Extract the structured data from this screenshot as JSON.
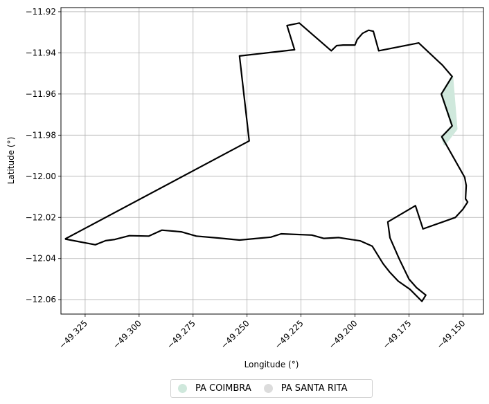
{
  "chart_data": {
    "type": "map",
    "xlabel": "Longitude (°)",
    "ylabel": "Latitude (°)",
    "xlim": [
      -49.3362,
      -49.1405
    ],
    "ylim": [
      -12.067,
      -11.918
    ],
    "x_ticks": [
      -49.325,
      -49.3,
      -49.275,
      -49.25,
      -49.225,
      -49.2,
      -49.175,
      -49.15
    ],
    "x_tick_labels": [
      "−49.325",
      "−49.300",
      "−49.275",
      "−49.250",
      "−49.225",
      "−49.200",
      "−49.175",
      "−49.150"
    ],
    "y_ticks": [
      -11.92,
      -11.94,
      -11.96,
      -11.98,
      -12.0,
      -12.02,
      -12.04,
      -12.06
    ],
    "y_tick_labels": [
      "−11.92",
      "−11.94",
      "−11.96",
      "−11.98",
      "−12.00",
      "−12.02",
      "−12.04",
      "−12.06"
    ],
    "grid": true,
    "legend_position": "bottom-center",
    "boundary": {
      "stroke": "#000000",
      "points": [
        [
          -49.3343,
          -12.0305
        ],
        [
          -49.3203,
          -12.0333
        ],
        [
          -49.3155,
          -12.0313
        ],
        [
          -49.3112,
          -12.0307
        ],
        [
          -49.3045,
          -12.0289
        ],
        [
          -49.2955,
          -12.0291
        ],
        [
          -49.2895,
          -12.0262
        ],
        [
          -49.2805,
          -12.027
        ],
        [
          -49.2735,
          -12.0291
        ],
        [
          -49.2635,
          -12.03
        ],
        [
          -49.2535,
          -12.031
        ],
        [
          -49.239,
          -12.0296
        ],
        [
          -49.2342,
          -12.028
        ],
        [
          -49.22,
          -12.0286
        ],
        [
          -49.2145,
          -12.0302
        ],
        [
          -49.2075,
          -12.0298
        ],
        [
          -49.1975,
          -12.0314
        ],
        [
          -49.192,
          -12.034
        ],
        [
          -49.187,
          -12.0425
        ],
        [
          -49.184,
          -12.0465
        ],
        [
          -49.18,
          -12.051
        ],
        [
          -49.1745,
          -12.055
        ],
        [
          -49.169,
          -12.0608
        ],
        [
          -49.1672,
          -12.0578
        ],
        [
          -49.1715,
          -12.0542
        ],
        [
          -49.175,
          -12.05
        ],
        [
          -49.1795,
          -12.0402
        ],
        [
          -49.1838,
          -12.0299
        ],
        [
          -49.1848,
          -12.0222
        ],
        [
          -49.172,
          -12.0143
        ],
        [
          -49.1685,
          -12.0256
        ],
        [
          -49.1535,
          -12.02
        ],
        [
          -49.15,
          -12.016
        ],
        [
          -49.1478,
          -12.0125
        ],
        [
          -49.1488,
          -12.011
        ],
        [
          -49.1485,
          -12.0045
        ],
        [
          -49.1492,
          -12.0005
        ],
        [
          -49.1598,
          -11.9808
        ],
        [
          -49.155,
          -11.9755
        ],
        [
          -49.16,
          -11.96
        ],
        [
          -49.155,
          -11.9515
        ],
        [
          -49.1595,
          -11.946
        ],
        [
          -49.1705,
          -11.9352
        ],
        [
          -49.189,
          -11.939
        ],
        [
          -49.1915,
          -11.9295
        ],
        [
          -49.1937,
          -11.929
        ],
        [
          -49.1965,
          -11.9305
        ],
        [
          -49.199,
          -11.9335
        ],
        [
          -49.2,
          -11.9362
        ],
        [
          -49.2055,
          -11.9362
        ],
        [
          -49.2085,
          -11.9365
        ],
        [
          -49.211,
          -11.939
        ],
        [
          -49.2258,
          -11.9255
        ],
        [
          -49.2315,
          -11.9267
        ],
        [
          -49.228,
          -11.9385
        ],
        [
          -49.2535,
          -11.9415
        ],
        [
          -49.249,
          -11.9828
        ],
        [
          -49.3343,
          -12.0305
        ]
      ]
    },
    "series": [
      {
        "name": "PA COIMBRA",
        "color": "#cfe8dc",
        "segments": [
          [
            [
              -49.155,
              -11.9515
            ],
            [
              -49.16,
              -11.96
            ],
            [
              -49.155,
              -11.9755
            ],
            [
              -49.1598,
              -11.9808
            ],
            [
              -49.1585,
              -11.9845
            ],
            [
              -49.153,
              -11.977
            ]
          ]
        ]
      },
      {
        "name": "PA SANTA RITA",
        "color": "#dcdcdc",
        "segments": []
      }
    ]
  }
}
